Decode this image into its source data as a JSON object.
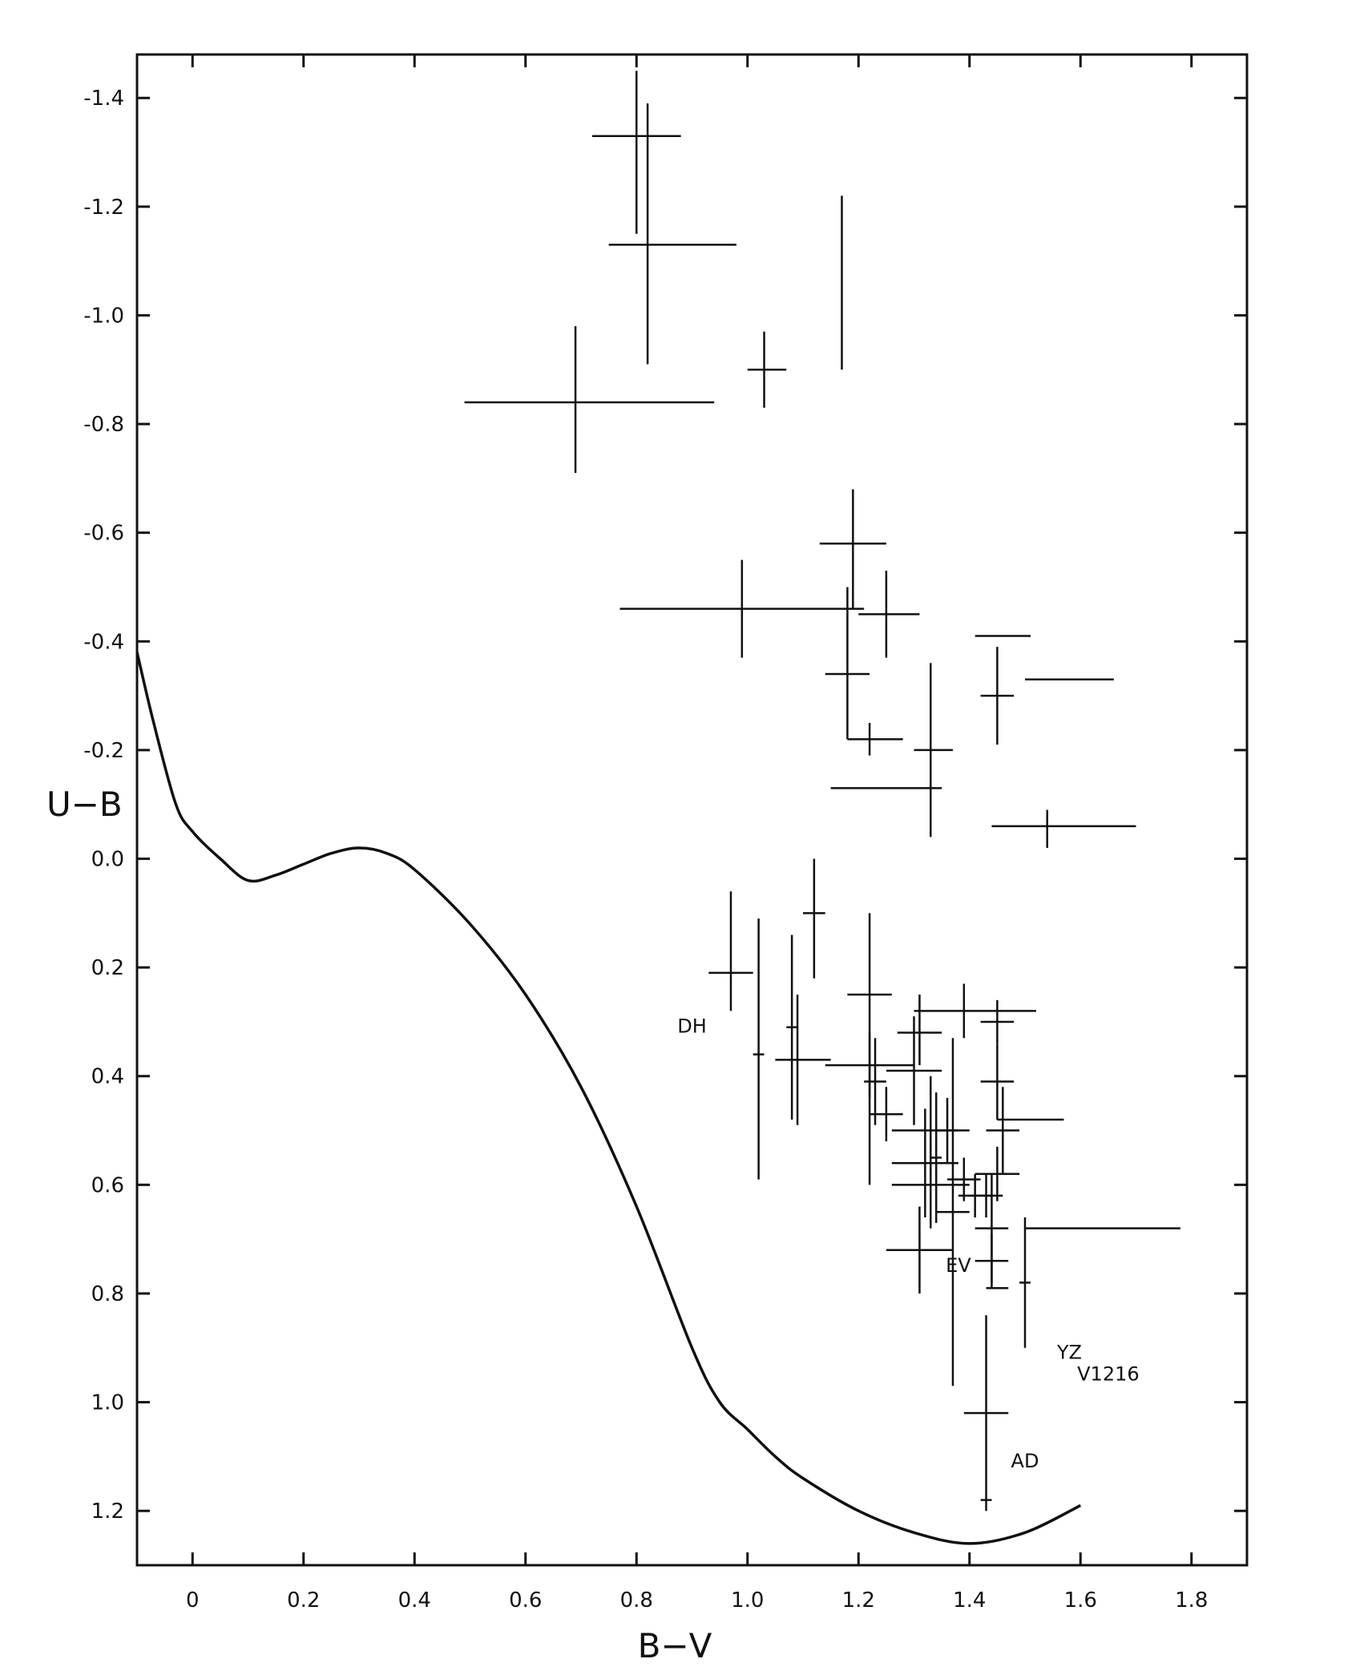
{
  "chart_data": {
    "type": "scatter",
    "title": "",
    "xlabel": "B−V",
    "ylabel": "U−B",
    "xlim": [
      -0.1,
      1.9
    ],
    "ylim": [
      1.3,
      -1.48
    ],
    "y_inverted": true,
    "x_ticks": [
      0,
      0.2,
      0.4,
      0.6,
      0.8,
      1.0,
      1.2,
      1.4,
      1.6,
      1.8
    ],
    "x_tick_labels": [
      "0",
      "0.2",
      "0.4",
      "0.6",
      "0.8",
      "1.0",
      "1.2",
      "1.4",
      "1.6",
      "1.8"
    ],
    "y_ticks": [
      -1.4,
      -1.2,
      -1.0,
      -0.8,
      -0.6,
      -0.4,
      -0.2,
      0.0,
      0.2,
      0.4,
      0.6,
      0.8,
      1.0,
      1.2
    ],
    "y_tick_labels": [
      "-1.4",
      "-1.2",
      "-1.0",
      "-0.8",
      "-0.6",
      "-0.4",
      "-0.2",
      "0.0",
      "0.2",
      "0.4",
      "0.6",
      "0.8",
      "1.0",
      "1.2"
    ],
    "grid": false,
    "series": [
      {
        "name": "main-sequence-curve",
        "type": "line",
        "x": [
          -0.1,
          -0.07,
          -0.03,
          0.0,
          0.05,
          0.1,
          0.15,
          0.2,
          0.25,
          0.3,
          0.35,
          0.4,
          0.5,
          0.6,
          0.7,
          0.8,
          0.9,
          0.95,
          1.0,
          1.05,
          1.1,
          1.2,
          1.3,
          1.4,
          1.5,
          1.6
        ],
        "y": [
          -0.38,
          -0.25,
          -0.1,
          -0.05,
          0.0,
          0.04,
          0.03,
          0.01,
          -0.01,
          -0.02,
          -0.01,
          0.02,
          0.12,
          0.25,
          0.42,
          0.64,
          0.9,
          1.0,
          1.05,
          1.1,
          1.14,
          1.2,
          1.24,
          1.26,
          1.24,
          1.19
        ]
      },
      {
        "name": "flare-stars",
        "type": "errorbar",
        "points": [
          {
            "x": 0.8,
            "y": -1.33,
            "xerr": [
              0.08,
              0.08
            ],
            "yerr": [
              0.12,
              0.18
            ]
          },
          {
            "x": 0.82,
            "y": -1.13,
            "xerr": [
              0.07,
              0.16
            ],
            "yerr": [
              0.26,
              0.22
            ]
          },
          {
            "x": 0.69,
            "y": -0.84,
            "xerr": [
              0.2,
              0.25
            ],
            "yerr": [
              0.14,
              0.13
            ]
          },
          {
            "x": 1.03,
            "y": -0.9,
            "xerr": [
              0.03,
              0.04
            ],
            "yerr": [
              0.07,
              0.07
            ]
          },
          {
            "x": 1.17,
            "y": -1.0,
            "xerr": [
              0,
              0
            ],
            "yerr": [
              0.22,
              0.1
            ]
          },
          {
            "x": 1.19,
            "y": -0.58,
            "xerr": [
              0.06,
              0.06
            ],
            "yerr": [
              0.1,
              0.12
            ]
          },
          {
            "x": 0.99,
            "y": -0.46,
            "xerr": [
              0.22,
              0.22
            ],
            "yerr": [
              0.09,
              0.09
            ]
          },
          {
            "x": 1.25,
            "y": -0.45,
            "xerr": [
              0.05,
              0.06
            ],
            "yerr": [
              0.08,
              0.08
            ]
          },
          {
            "x": 1.18,
            "y": -0.34,
            "xerr": [
              0.04,
              0.04
            ],
            "yerr": [
              0.16,
              0.12
            ]
          },
          {
            "x": 1.22,
            "y": -0.22,
            "xerr": [
              0.04,
              0.06
            ],
            "yerr": [
              0.03,
              0.03
            ]
          },
          {
            "x": 1.33,
            "y": -0.2,
            "xerr": [
              0.03,
              0.04
            ],
            "yerr": [
              0.16,
              0.16
            ]
          },
          {
            "x": 1.25,
            "y": -0.13,
            "xerr": [
              0.1,
              0.1
            ],
            "yerr": [
              0,
              0
            ]
          },
          {
            "x": 1.46,
            "y": -0.41,
            "xerr": [
              0.05,
              0.05
            ],
            "yerr": [
              0,
              0
            ]
          },
          {
            "x": 1.45,
            "y": -0.3,
            "xerr": [
              0.03,
              0.03
            ],
            "yerr": [
              0.09,
              0.09
            ]
          },
          {
            "x": 1.58,
            "y": -0.33,
            "xerr": [
              0.08,
              0.08
            ],
            "yerr": [
              0,
              0
            ]
          },
          {
            "x": 1.54,
            "y": -0.06,
            "xerr": [
              0.1,
              0.16
            ],
            "yerr": [
              0.03,
              0.04
            ]
          },
          {
            "x": 0.97,
            "y": 0.21,
            "xerr": [
              0.04,
              0.04
            ],
            "yerr": [
              0.15,
              0.07
            ]
          },
          {
            "x": 1.02,
            "y": 0.36,
            "xerr": [
              0.01,
              0.01
            ],
            "yerr": [
              0.25,
              0.23
            ]
          },
          {
            "x": 1.08,
            "y": 0.31,
            "xerr": [
              0.01,
              0.01
            ],
            "yerr": [
              0.17,
              0.17
            ]
          },
          {
            "x": 1.09,
            "y": 0.37,
            "xerr": [
              0.04,
              0.06
            ],
            "yerr": [
              0.12,
              0.12
            ]
          },
          {
            "x": 1.12,
            "y": 0.1,
            "xerr": [
              0.02,
              0.02
            ],
            "yerr": [
              0.1,
              0.12
            ]
          },
          {
            "x": 1.22,
            "y": 0.25,
            "xerr": [
              0.04,
              0.04
            ],
            "yerr": [
              0.15,
              0.35
            ]
          },
          {
            "x": 1.22,
            "y": 0.38,
            "xerr": [
              0.08,
              0.08
            ],
            "yerr": [
              0.06,
              0.06
            ]
          },
          {
            "x": 1.23,
            "y": 0.41,
            "xerr": [
              0.02,
              0.02
            ],
            "yerr": [
              0.08,
              0.08
            ]
          },
          {
            "x": 1.25,
            "y": 0.47,
            "xerr": [
              0.03,
              0.03
            ],
            "yerr": [
              0.05,
              0.05
            ]
          },
          {
            "x": 1.31,
            "y": 0.32,
            "xerr": [
              0.04,
              0.04
            ],
            "yerr": [
              0.07,
              0.06
            ]
          },
          {
            "x": 1.3,
            "y": 0.39,
            "xerr": [
              0.05,
              0.05
            ],
            "yerr": [
              0.1,
              0.1
            ]
          },
          {
            "x": 1.33,
            "y": 0.5,
            "xerr": [
              0.07,
              0.07
            ],
            "yerr": [
              0.1,
              0.1
            ]
          },
          {
            "x": 1.32,
            "y": 0.56,
            "xerr": [
              0.06,
              0.06
            ],
            "yerr": [
              0.1,
              0.1
            ]
          },
          {
            "x": 1.33,
            "y": 0.6,
            "xerr": [
              0.07,
              0.07
            ],
            "yerr": [
              0.08,
              0.08
            ]
          },
          {
            "x": 1.31,
            "y": 0.72,
            "xerr": [
              0.06,
              0.06
            ],
            "yerr": [
              0.08,
              0.08
            ]
          },
          {
            "x": 1.34,
            "y": 0.55,
            "xerr": [
              0.01,
              0.01
            ],
            "yerr": [
              0.12,
              0.12
            ]
          },
          {
            "x": 1.39,
            "y": 0.28,
            "xerr": [
              0.09,
              0.13
            ],
            "yerr": [
              0.05,
              0.05
            ]
          },
          {
            "x": 1.36,
            "y": 0.5,
            "xerr": [
              0.02,
              0.02
            ],
            "yerr": [
              0.06,
              0.06
            ]
          },
          {
            "x": 1.37,
            "y": 0.65,
            "xerr": [
              0.03,
              0.03
            ],
            "yerr": [
              0.32,
              0.32
            ]
          },
          {
            "x": 1.39,
            "y": 0.59,
            "xerr": [
              0.03,
              0.03
            ],
            "yerr": [
              0.04,
              0.04
            ]
          },
          {
            "x": 1.41,
            "y": 0.62,
            "xerr": [
              0.03,
              0.03
            ],
            "yerr": [
              0.04,
              0.04
            ]
          },
          {
            "x": 1.45,
            "y": 0.3,
            "xerr": [
              0.03,
              0.03
            ],
            "yerr": [
              0.04,
              0.04
            ]
          },
          {
            "x": 1.45,
            "y": 0.41,
            "xerr": [
              0.03,
              0.03
            ],
            "yerr": [
              0.07,
              0.07
            ]
          },
          {
            "x": 1.46,
            "y": 0.5,
            "xerr": [
              0.03,
              0.03
            ],
            "yerr": [
              0.08,
              0.08
            ]
          },
          {
            "x": 1.49,
            "y": 0.48,
            "xerr": [
              0.04,
              0.08
            ],
            "yerr": [
              0,
              0
            ]
          },
          {
            "x": 1.45,
            "y": 0.58,
            "xerr": [
              0.04,
              0.04
            ],
            "yerr": [
              0.05,
              0.05
            ]
          },
          {
            "x": 1.43,
            "y": 0.62,
            "xerr": [
              0.03,
              0.03
            ],
            "yerr": [
              0.04,
              0.04
            ]
          },
          {
            "x": 1.44,
            "y": 0.68,
            "xerr": [
              0.03,
              0.03
            ],
            "yerr": [
              0.1,
              0.1
            ]
          },
          {
            "x": 1.6,
            "y": 0.68,
            "xerr": [
              0.1,
              0.18
            ],
            "yerr": [
              0,
              0
            ]
          },
          {
            "x": 1.44,
            "y": 0.74,
            "xerr": [
              0.03,
              0.03
            ],
            "yerr": [
              0.05,
              0.05
            ]
          },
          {
            "x": 1.45,
            "y": 0.79,
            "xerr": [
              0.02,
              0.02
            ],
            "yerr": [
              0,
              0
            ]
          },
          {
            "x": 1.5,
            "y": 0.78,
            "xerr": [
              0.01,
              0.01
            ],
            "yerr": [
              0.12,
              0.12
            ]
          },
          {
            "x": 1.43,
            "y": 1.02,
            "xerr": [
              0.04,
              0.04
            ],
            "yerr": [
              0.18,
              0.18
            ]
          },
          {
            "x": 1.43,
            "y": 1.18,
            "xerr": [
              0.01,
              0.01
            ],
            "yerr": [
              0,
              0
            ]
          }
        ]
      }
    ],
    "annotations": [
      {
        "text": "DH",
        "x": 0.9,
        "y": 0.32
      },
      {
        "text": "EV",
        "x": 1.38,
        "y": 0.76
      },
      {
        "text": "YZ",
        "x": 1.58,
        "y": 0.92
      },
      {
        "text": "V1216",
        "x": 1.65,
        "y": 0.96
      },
      {
        "text": "AD",
        "x": 1.5,
        "y": 1.12
      }
    ]
  }
}
